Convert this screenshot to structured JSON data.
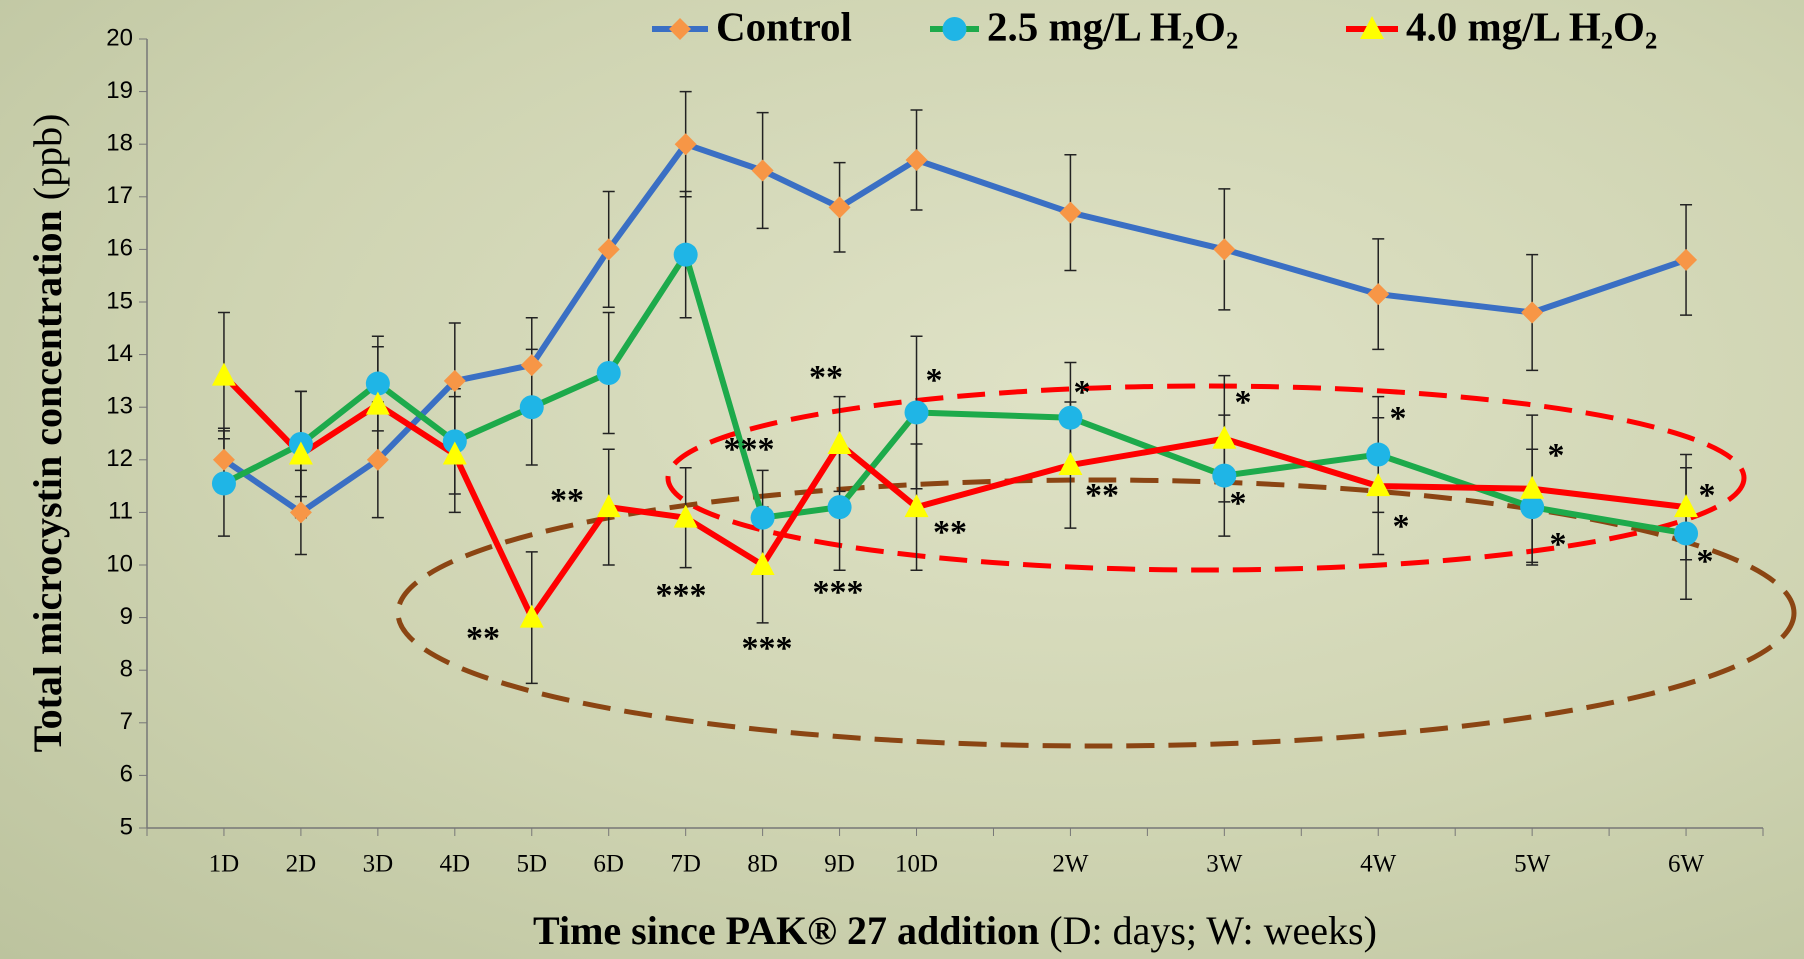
{
  "chart_data": {
    "type": "line",
    "y_label": "Total microcystin concentration",
    "y_label_unit": "(ppb)",
    "x_label": "Time since PAK® 27 addition",
    "x_label_note": "(D: days; W: weeks)",
    "categories": [
      "1D",
      "2D",
      "3D",
      "4D",
      "5D",
      "6D",
      "7D",
      "8D",
      "9D",
      "10D",
      "2W",
      "3W",
      "4W",
      "5W",
      "6W"
    ],
    "ylim": [
      5,
      20
    ],
    "yticks": [
      5,
      6,
      7,
      8,
      9,
      10,
      11,
      12,
      13,
      14,
      15,
      16,
      17,
      18,
      19,
      20
    ],
    "series": [
      {
        "name": "Control",
        "color": "#3a6fc4",
        "marker_color": "#f79646",
        "marker": "diamond",
        "values": [
          12.0,
          11.0,
          12.0,
          13.5,
          13.8,
          16.0,
          18.0,
          17.5,
          16.8,
          17.7,
          16.7,
          16.0,
          15.15,
          14.8,
          15.8
        ],
        "errors": [
          0.6,
          0.8,
          1.1,
          1.1,
          0.9,
          1.1,
          1.0,
          1.1,
          0.85,
          0.95,
          1.1,
          1.15,
          1.05,
          1.1,
          1.05
        ]
      },
      {
        "name": "2.5 mg/L H₂O₂",
        "color": "#1daa4b",
        "marker_color": "#1fb5e6",
        "marker": "circle",
        "values": [
          11.55,
          12.3,
          13.45,
          12.35,
          13.0,
          13.65,
          15.9,
          10.9,
          11.1,
          12.9,
          12.8,
          11.7,
          12.1,
          11.1,
          10.6
        ],
        "errors": [
          1.0,
          1.0,
          0.9,
          1.0,
          1.1,
          1.15,
          1.2,
          0.9,
          1.2,
          1.45,
          1.05,
          1.15,
          1.1,
          1.1,
          1.25
        ]
      },
      {
        "name": "4.0 mg/L H₂O₂",
        "color": "#ff0000",
        "marker_color": "#ffff00",
        "marker": "triangle",
        "values": [
          13.6,
          12.1,
          13.05,
          12.1,
          9.0,
          11.1,
          10.9,
          10.0,
          12.3,
          11.1,
          11.9,
          12.4,
          11.5,
          11.45,
          11.1
        ],
        "errors": [
          1.2,
          1.2,
          1.1,
          1.1,
          1.25,
          1.1,
          0.95,
          1.1,
          0.9,
          1.2,
          1.2,
          1.2,
          1.3,
          1.4,
          1.0
        ]
      }
    ],
    "annotations": [
      "**",
      "**",
      "***",
      "***",
      "***",
      "**",
      "***",
      "*",
      "**",
      "*",
      "**",
      "*",
      "*",
      "*",
      "*",
      "*",
      "*",
      "*",
      "*"
    ]
  }
}
